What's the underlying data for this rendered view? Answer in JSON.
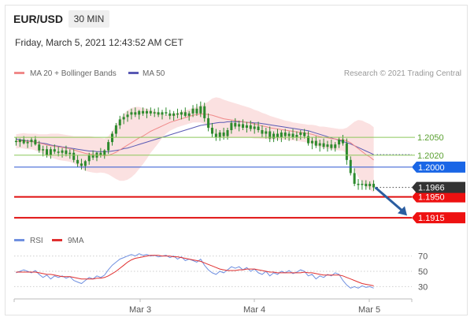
{
  "header": {
    "symbol": "EUR/USD",
    "timeframe": "30 MIN",
    "datetime": "Friday, March 5, 2021 12:43:52 AM CET"
  },
  "legend": {
    "ma20": "MA 20 + Bollinger Bands",
    "ma50": "MA 50",
    "credit": "Research © 2021 Trading Central",
    "rsi": "RSI",
    "rsi_ma": "9MA"
  },
  "colors": {
    "candle": "#2d8a2d",
    "ma20": "#f08a8a",
    "bollinger_fill": "#fadcdc",
    "ma50": "#5a5ab4",
    "support_line": "#e01010",
    "resistance_line": "#8cc85a",
    "pivot_line": "#2a55d0",
    "label_blue": "#1a66e6",
    "label_dark": "#333333",
    "label_red": "#ee1111",
    "rsi": "#7090e0",
    "rsi_ma": "#e03030",
    "arrow": "#2a5da0"
  },
  "chart_data": [
    {
      "type": "candlestick",
      "title": "EUR/USD",
      "x_ticks": [
        "Mar 3",
        "Mar 4",
        "Mar 5"
      ],
      "ylim": [
        1.1898,
        1.2144
      ],
      "levels": [
        {
          "value": 1.205,
          "label": "1.2050",
          "kind": "resistance"
        },
        {
          "value": 1.202,
          "label": "1.2020",
          "kind": "resistance"
        },
        {
          "value": 1.2,
          "label": "1.2000",
          "kind": "pivot"
        },
        {
          "value": 1.195,
          "label": "1.1950",
          "kind": "support"
        },
        {
          "value": 1.1915,
          "label": "1.1915",
          "kind": "support"
        }
      ],
      "last_price": {
        "value": 1.1966,
        "label": "1.1966"
      },
      "projection": {
        "from": 1.1966,
        "to": 1.192
      },
      "candles": [
        {
          "o": 1.2044,
          "h": 1.205,
          "l": 1.2036,
          "c": 1.2042
        },
        {
          "o": 1.2042,
          "h": 1.2048,
          "l": 1.2034,
          "c": 1.2046
        },
        {
          "o": 1.2046,
          "h": 1.2052,
          "l": 1.2038,
          "c": 1.204
        },
        {
          "o": 1.204,
          "h": 1.2046,
          "l": 1.2032,
          "c": 1.2042
        },
        {
          "o": 1.2042,
          "h": 1.205,
          "l": 1.2034,
          "c": 1.2046
        },
        {
          "o": 1.2046,
          "h": 1.2052,
          "l": 1.2036,
          "c": 1.2038
        },
        {
          "o": 1.2038,
          "h": 1.2044,
          "l": 1.2024,
          "c": 1.2028
        },
        {
          "o": 1.2028,
          "h": 1.2036,
          "l": 1.2018,
          "c": 1.203
        },
        {
          "o": 1.203,
          "h": 1.2036,
          "l": 1.2016,
          "c": 1.202
        },
        {
          "o": 1.202,
          "h": 1.2034,
          "l": 1.2014,
          "c": 1.203
        },
        {
          "o": 1.203,
          "h": 1.2038,
          "l": 1.2022,
          "c": 1.2026
        },
        {
          "o": 1.2026,
          "h": 1.2034,
          "l": 1.2018,
          "c": 1.2024
        },
        {
          "o": 1.2024,
          "h": 1.2032,
          "l": 1.2016,
          "c": 1.2028
        },
        {
          "o": 1.2028,
          "h": 1.2036,
          "l": 1.2018,
          "c": 1.2022
        },
        {
          "o": 1.2022,
          "h": 1.203,
          "l": 1.2014,
          "c": 1.2024
        },
        {
          "o": 1.2024,
          "h": 1.203,
          "l": 1.2008,
          "c": 1.2012
        },
        {
          "o": 1.2012,
          "h": 1.202,
          "l": 1.2,
          "c": 1.2006
        },
        {
          "o": 1.2006,
          "h": 1.2014,
          "l": 1.1996,
          "c": 1.2002
        },
        {
          "o": 1.2002,
          "h": 1.2012,
          "l": 1.1994,
          "c": 1.201
        },
        {
          "o": 1.201,
          "h": 1.2024,
          "l": 1.2004,
          "c": 1.202
        },
        {
          "o": 1.202,
          "h": 1.2028,
          "l": 1.2012,
          "c": 1.2016
        },
        {
          "o": 1.2016,
          "h": 1.2026,
          "l": 1.201,
          "c": 1.2024
        },
        {
          "o": 1.2024,
          "h": 1.2032,
          "l": 1.2016,
          "c": 1.202
        },
        {
          "o": 1.202,
          "h": 1.203,
          "l": 1.2014,
          "c": 1.2028
        },
        {
          "o": 1.2028,
          "h": 1.2046,
          "l": 1.2022,
          "c": 1.2042
        },
        {
          "o": 1.2042,
          "h": 1.206,
          "l": 1.2036,
          "c": 1.2056
        },
        {
          "o": 1.2056,
          "h": 1.2074,
          "l": 1.205,
          "c": 1.207
        },
        {
          "o": 1.207,
          "h": 1.2086,
          "l": 1.2064,
          "c": 1.208
        },
        {
          "o": 1.208,
          "h": 1.209,
          "l": 1.2072,
          "c": 1.2084
        },
        {
          "o": 1.2084,
          "h": 1.2094,
          "l": 1.2076,
          "c": 1.2088
        },
        {
          "o": 1.2088,
          "h": 1.2098,
          "l": 1.208,
          "c": 1.2092
        },
        {
          "o": 1.2092,
          "h": 1.21,
          "l": 1.2084,
          "c": 1.2088
        },
        {
          "o": 1.2088,
          "h": 1.2096,
          "l": 1.208,
          "c": 1.2094
        },
        {
          "o": 1.2094,
          "h": 1.21,
          "l": 1.2086,
          "c": 1.209
        },
        {
          "o": 1.209,
          "h": 1.2098,
          "l": 1.2082,
          "c": 1.2094
        },
        {
          "o": 1.2094,
          "h": 1.21,
          "l": 1.2086,
          "c": 1.209
        },
        {
          "o": 1.209,
          "h": 1.2098,
          "l": 1.2084,
          "c": 1.2092
        },
        {
          "o": 1.2092,
          "h": 1.21,
          "l": 1.2084,
          "c": 1.2088
        },
        {
          "o": 1.2088,
          "h": 1.2096,
          "l": 1.208,
          "c": 1.2092
        },
        {
          "o": 1.2092,
          "h": 1.21,
          "l": 1.2086,
          "c": 1.209
        },
        {
          "o": 1.209,
          "h": 1.2096,
          "l": 1.208,
          "c": 1.2086
        },
        {
          "o": 1.2086,
          "h": 1.2094,
          "l": 1.2078,
          "c": 1.209
        },
        {
          "o": 1.209,
          "h": 1.2098,
          "l": 1.2082,
          "c": 1.2088
        },
        {
          "o": 1.2088,
          "h": 1.2096,
          "l": 1.208,
          "c": 1.2092
        },
        {
          "o": 1.2092,
          "h": 1.21,
          "l": 1.2084,
          "c": 1.2086
        },
        {
          "o": 1.2086,
          "h": 1.2094,
          "l": 1.2078,
          "c": 1.209
        },
        {
          "o": 1.209,
          "h": 1.2104,
          "l": 1.2084,
          "c": 1.2098
        },
        {
          "o": 1.2098,
          "h": 1.2106,
          "l": 1.2086,
          "c": 1.209
        },
        {
          "o": 1.209,
          "h": 1.211,
          "l": 1.2084,
          "c": 1.2102
        },
        {
          "o": 1.2102,
          "h": 1.2108,
          "l": 1.2076,
          "c": 1.2082
        },
        {
          "o": 1.2082,
          "h": 1.209,
          "l": 1.206,
          "c": 1.2066
        },
        {
          "o": 1.2066,
          "h": 1.2074,
          "l": 1.205,
          "c": 1.2056
        },
        {
          "o": 1.2056,
          "h": 1.2064,
          "l": 1.2044,
          "c": 1.205
        },
        {
          "o": 1.205,
          "h": 1.2062,
          "l": 1.2044,
          "c": 1.2058
        },
        {
          "o": 1.2058,
          "h": 1.2066,
          "l": 1.2046,
          "c": 1.2052
        },
        {
          "o": 1.2052,
          "h": 1.2066,
          "l": 1.2046,
          "c": 1.2062
        },
        {
          "o": 1.2062,
          "h": 1.2078,
          "l": 1.2056,
          "c": 1.2074
        },
        {
          "o": 1.2074,
          "h": 1.2082,
          "l": 1.2064,
          "c": 1.2068
        },
        {
          "o": 1.2068,
          "h": 1.2078,
          "l": 1.206,
          "c": 1.2072
        },
        {
          "o": 1.2072,
          "h": 1.208,
          "l": 1.2062,
          "c": 1.2066
        },
        {
          "o": 1.2066,
          "h": 1.2076,
          "l": 1.2058,
          "c": 1.207
        },
        {
          "o": 1.207,
          "h": 1.2078,
          "l": 1.206,
          "c": 1.2064
        },
        {
          "o": 1.2064,
          "h": 1.2074,
          "l": 1.2056,
          "c": 1.2068
        },
        {
          "o": 1.2068,
          "h": 1.2076,
          "l": 1.2058,
          "c": 1.2062
        },
        {
          "o": 1.2062,
          "h": 1.207,
          "l": 1.205,
          "c": 1.2056
        },
        {
          "o": 1.2056,
          "h": 1.2066,
          "l": 1.2048,
          "c": 1.206
        },
        {
          "o": 1.206,
          "h": 1.2068,
          "l": 1.2042,
          "c": 1.2048
        },
        {
          "o": 1.2048,
          "h": 1.206,
          "l": 1.2042,
          "c": 1.2056
        },
        {
          "o": 1.2056,
          "h": 1.2064,
          "l": 1.2044,
          "c": 1.205
        },
        {
          "o": 1.205,
          "h": 1.2062,
          "l": 1.2042,
          "c": 1.2058
        },
        {
          "o": 1.2058,
          "h": 1.2064,
          "l": 1.2046,
          "c": 1.2052
        },
        {
          "o": 1.2052,
          "h": 1.206,
          "l": 1.2044,
          "c": 1.2056
        },
        {
          "o": 1.2056,
          "h": 1.2064,
          "l": 1.2046,
          "c": 1.205
        },
        {
          "o": 1.205,
          "h": 1.206,
          "l": 1.2044,
          "c": 1.2054
        },
        {
          "o": 1.2054,
          "h": 1.2062,
          "l": 1.2046,
          "c": 1.2058
        },
        {
          "o": 1.2058,
          "h": 1.2064,
          "l": 1.2048,
          "c": 1.2052
        },
        {
          "o": 1.2052,
          "h": 1.206,
          "l": 1.2036,
          "c": 1.204
        },
        {
          "o": 1.204,
          "h": 1.205,
          "l": 1.203,
          "c": 1.2044
        },
        {
          "o": 1.2044,
          "h": 1.2052,
          "l": 1.2032,
          "c": 1.2036
        },
        {
          "o": 1.2036,
          "h": 1.2046,
          "l": 1.2026,
          "c": 1.204
        },
        {
          "o": 1.204,
          "h": 1.2048,
          "l": 1.203,
          "c": 1.2034
        },
        {
          "o": 1.2034,
          "h": 1.2044,
          "l": 1.2026,
          "c": 1.2038
        },
        {
          "o": 1.2038,
          "h": 1.2046,
          "l": 1.2028,
          "c": 1.2032
        },
        {
          "o": 1.2032,
          "h": 1.2042,
          "l": 1.2026,
          "c": 1.2038
        },
        {
          "o": 1.2038,
          "h": 1.205,
          "l": 1.2032,
          "c": 1.2046
        },
        {
          "o": 1.2046,
          "h": 1.2054,
          "l": 1.2036,
          "c": 1.204
        },
        {
          "o": 1.204,
          "h": 1.2048,
          "l": 1.2004,
          "c": 1.2012
        },
        {
          "o": 1.2012,
          "h": 1.2018,
          "l": 1.1986,
          "c": 1.199
        },
        {
          "o": 1.199,
          "h": 1.1998,
          "l": 1.1968,
          "c": 1.1972
        },
        {
          "o": 1.1972,
          "h": 1.198,
          "l": 1.1962,
          "c": 1.197
        },
        {
          "o": 1.197,
          "h": 1.1978,
          "l": 1.1962,
          "c": 1.1972
        },
        {
          "o": 1.1972,
          "h": 1.1978,
          "l": 1.1962,
          "c": 1.1968
        },
        {
          "o": 1.1968,
          "h": 1.1976,
          "l": 1.1962,
          "c": 1.1972
        },
        {
          "o": 1.1972,
          "h": 1.1978,
          "l": 1.196,
          "c": 1.1966
        }
      ],
      "ma20": [
        1.2043,
        1.2044,
        1.2044,
        1.2043,
        1.2043,
        1.2042,
        1.204,
        1.2039,
        1.2037,
        1.2036,
        1.2035,
        1.2034,
        1.2033,
        1.2032,
        1.2031,
        1.2029,
        1.2027,
        1.2025,
        1.2023,
        1.2022,
        1.2021,
        1.202,
        1.202,
        1.2019,
        1.202,
        1.2022,
        1.2025,
        1.2029,
        1.2033,
        1.2037,
        1.2041,
        1.2045,
        1.2049,
        1.2052,
        1.2056,
        1.206,
        1.2063,
        1.2066,
        1.2069,
        1.2072,
        1.2075,
        1.2077,
        1.2079,
        1.2081,
        1.2083,
        1.2085,
        1.2087,
        1.2088,
        1.2089,
        1.2089,
        1.2088,
        1.2087,
        1.2085,
        1.2083,
        1.2081,
        1.208,
        1.2079,
        1.2078,
        1.2077,
        1.2076,
        1.2075,
        1.2074,
        1.2072,
        1.2071,
        1.2069,
        1.2068,
        1.2066,
        1.2065,
        1.2064,
        1.2063,
        1.2062,
        1.2061,
        1.206,
        1.2059,
        1.2058,
        1.2057,
        1.2056,
        1.2055,
        1.2053,
        1.2051,
        1.205,
        1.2049,
        1.2048,
        1.2047,
        1.2046,
        1.2046,
        1.2044,
        1.2041,
        1.2036,
        1.2031,
        1.2026,
        1.2021,
        1.2017,
        1.2012
      ],
      "bb_width": [
        0.0012,
        0.0012,
        0.0013,
        0.0013,
        0.0013,
        0.0014,
        0.0015,
        0.0016,
        0.0018,
        0.002,
        0.0021,
        0.0022,
        0.0022,
        0.0022,
        0.0022,
        0.0023,
        0.0025,
        0.0027,
        0.0029,
        0.003,
        0.003,
        0.003,
        0.0029,
        0.0029,
        0.0032,
        0.0038,
        0.0045,
        0.0052,
        0.0056,
        0.0058,
        0.0058,
        0.0056,
        0.0052,
        0.0047,
        0.0042,
        0.0036,
        0.0031,
        0.0026,
        0.002,
        0.0016,
        0.0014,
        0.0013,
        0.0012,
        0.0012,
        0.0012,
        0.0012,
        0.0012,
        0.0013,
        0.0014,
        0.0017,
        0.0022,
        0.0028,
        0.0032,
        0.0033,
        0.0032,
        0.0031,
        0.003,
        0.0029,
        0.0028,
        0.0027,
        0.0026,
        0.0025,
        0.0024,
        0.0023,
        0.0022,
        0.0021,
        0.002,
        0.0019,
        0.0018,
        0.0017,
        0.0016,
        0.0016,
        0.0015,
        0.0015,
        0.0015,
        0.0015,
        0.0015,
        0.0016,
        0.0017,
        0.0017,
        0.0018,
        0.0018,
        0.0018,
        0.0018,
        0.0018,
        0.0018,
        0.0022,
        0.003,
        0.004,
        0.0048,
        0.0052,
        0.0054,
        0.0055,
        0.0055
      ],
      "ma50": [
        1.2047,
        1.2046,
        1.2045,
        1.2044,
        1.2043,
        1.2042,
        1.2041,
        1.204,
        1.2039,
        1.2037,
        1.2036,
        1.2035,
        1.2034,
        1.2033,
        1.2032,
        1.2031,
        1.203,
        1.2029,
        1.2028,
        1.2027,
        1.2027,
        1.2026,
        1.2026,
        1.2026,
        1.2026,
        1.2027,
        1.2028,
        1.2029,
        1.2031,
        1.2032,
        1.2034,
        1.2036,
        1.2038,
        1.204,
        1.2042,
        1.2044,
        1.2046,
        1.2048,
        1.205,
        1.2052,
        1.2054,
        1.2056,
        1.2058,
        1.206,
        1.2062,
        1.2064,
        1.2066,
        1.2068,
        1.207,
        1.2071,
        1.2072,
        1.2073,
        1.2074,
        1.2075,
        1.2075,
        1.2076,
        1.2076,
        1.2076,
        1.2076,
        1.2076,
        1.2075,
        1.2075,
        1.2074,
        1.2074,
        1.2073,
        1.2072,
        1.2071,
        1.207,
        1.2069,
        1.2068,
        1.2067,
        1.2066,
        1.2065,
        1.2064,
        1.2063,
        1.2062,
        1.2061,
        1.2059,
        1.2057,
        1.2055,
        1.2053,
        1.2051,
        1.2049,
        1.2047,
        1.2045,
        1.2043,
        1.2041,
        1.2039,
        1.2036,
        1.2033,
        1.203,
        1.2027,
        1.2024,
        1.2021
      ]
    },
    {
      "type": "line",
      "title": "RSI",
      "ylim": [
        18,
        82
      ],
      "y_ticks": [
        30,
        50,
        70
      ],
      "series": [
        {
          "name": "RSI",
          "values": [
            48,
            50,
            52,
            50,
            48,
            51,
            46,
            42,
            45,
            40,
            44,
            42,
            44,
            41,
            43,
            38,
            36,
            34,
            38,
            42,
            40,
            44,
            42,
            45,
            52,
            58,
            62,
            66,
            68,
            70,
            72,
            70,
            73,
            71,
            72,
            70,
            71,
            69,
            70,
            71,
            68,
            70,
            66,
            69,
            64,
            66,
            64,
            62,
            66,
            58,
            52,
            48,
            46,
            50,
            48,
            52,
            56,
            54,
            56,
            52,
            55,
            50,
            53,
            48,
            46,
            50,
            44,
            48,
            46,
            50,
            48,
            51,
            47,
            49,
            52,
            50,
            44,
            46,
            40,
            44,
            42,
            46,
            44,
            48,
            46,
            38,
            32,
            28,
            30,
            28,
            31,
            29,
            30,
            28
          ]
        },
        {
          "name": "9MA",
          "values": [
            49,
            49,
            49,
            49,
            49,
            49,
            48,
            47,
            46,
            46,
            45,
            44,
            43,
            43,
            43,
            42,
            41,
            40,
            40,
            40,
            40,
            41,
            41,
            42,
            44,
            47,
            50,
            54,
            58,
            62,
            65,
            67,
            68,
            69,
            70,
            71,
            71,
            71,
            70,
            70,
            70,
            69,
            69,
            68,
            67,
            66,
            65,
            64,
            63,
            61,
            59,
            57,
            55,
            53,
            52,
            51,
            51,
            51,
            52,
            52,
            53,
            53,
            53,
            52,
            51,
            50,
            49,
            49,
            48,
            48,
            48,
            48,
            48,
            48,
            48,
            49,
            48,
            48,
            47,
            46,
            45,
            45,
            45,
            45,
            45,
            44,
            42,
            40,
            38,
            36,
            34,
            33,
            32,
            31
          ]
        }
      ]
    }
  ]
}
